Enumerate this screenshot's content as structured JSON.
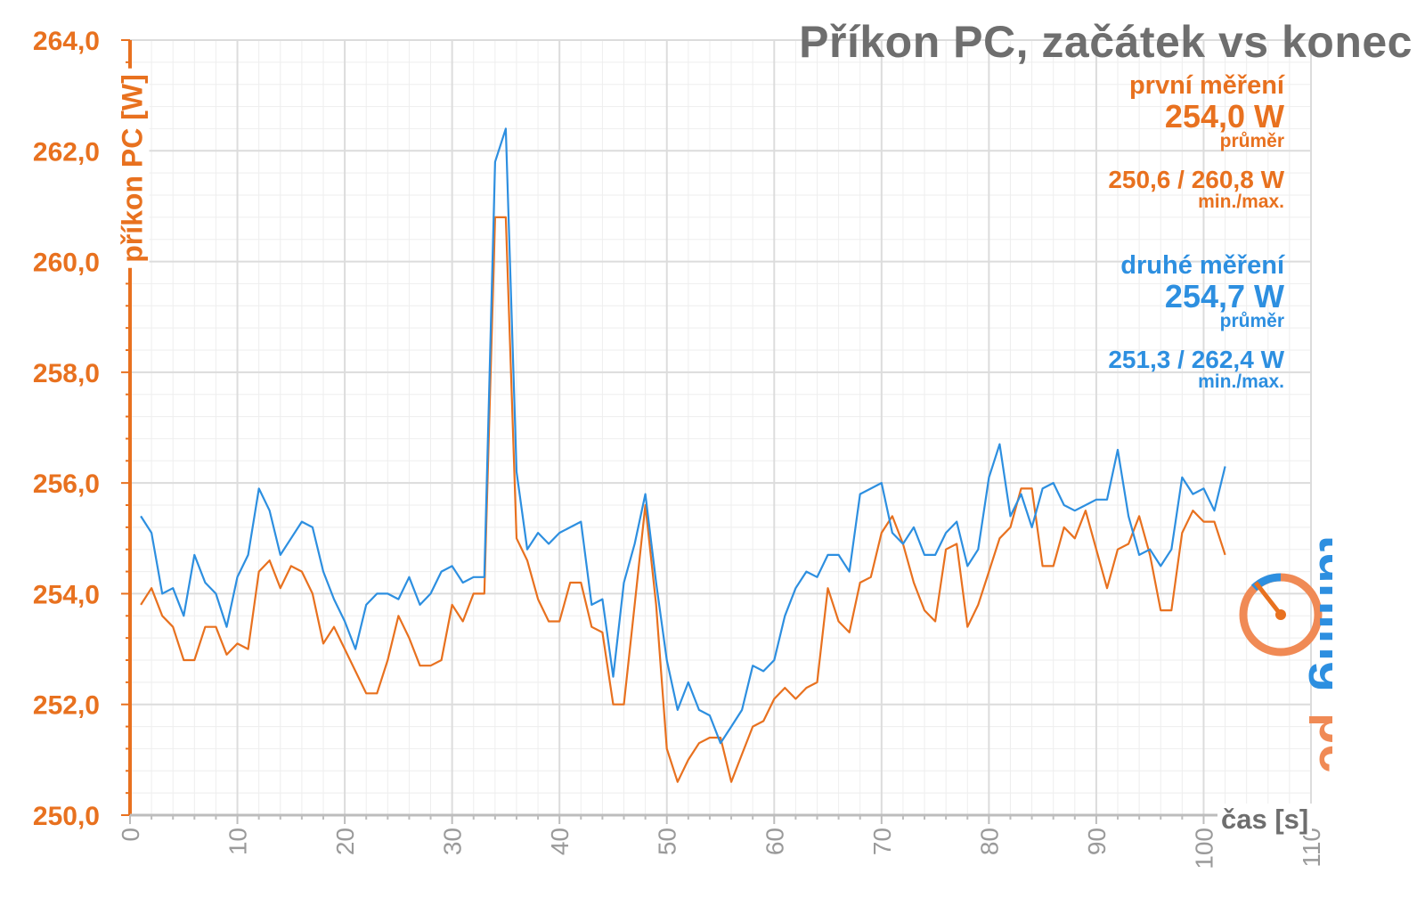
{
  "chart_data": {
    "type": "line",
    "title": "Příkon PC, začátek vs konec",
    "ylabel": "příkon PC [W]",
    "xlabel": "čas [s]",
    "xlim": [
      0,
      110
    ],
    "ylim": [
      250,
      264
    ],
    "x_ticks": [
      "0",
      "10",
      "20",
      "30",
      "40",
      "50",
      "60",
      "70",
      "80",
      "90",
      "100",
      "110"
    ],
    "y_ticks": [
      "250,0",
      "252,0",
      "254,0",
      "256,0",
      "258,0",
      "260,0",
      "262,0",
      "264,0"
    ],
    "grid": true,
    "series": [
      {
        "name": "první měření",
        "color": "#e8711f",
        "average": "254,0 W",
        "average_label": "průměr",
        "minmax": "250,6 / 260,8 W",
        "minmax_label": "min./max.",
        "x": [
          1,
          2,
          3,
          4,
          5,
          6,
          7,
          8,
          9,
          10,
          11,
          12,
          13,
          14,
          15,
          16,
          17,
          18,
          19,
          20,
          21,
          22,
          23,
          24,
          25,
          26,
          27,
          28,
          29,
          30,
          31,
          32,
          33,
          34,
          35,
          36,
          37,
          38,
          39,
          40,
          41,
          42,
          43,
          44,
          45,
          46,
          47,
          48,
          49,
          50,
          51,
          52,
          53,
          54,
          55,
          56,
          57,
          58,
          59,
          60,
          61,
          62,
          63,
          64,
          65,
          66,
          67,
          68,
          69,
          70,
          71,
          72,
          73,
          74,
          75,
          76,
          77,
          78,
          79,
          80,
          81,
          82,
          83,
          84,
          85,
          86,
          87,
          88,
          89,
          90,
          91,
          92,
          93,
          94,
          95,
          96,
          97,
          98,
          99,
          100,
          101,
          102
        ],
        "values": [
          253.8,
          254.1,
          253.6,
          253.4,
          252.8,
          252.8,
          253.4,
          253.4,
          252.9,
          253.1,
          253.0,
          254.4,
          254.6,
          254.1,
          254.5,
          254.4,
          254.0,
          253.1,
          253.4,
          253.0,
          252.6,
          252.2,
          252.2,
          252.8,
          253.6,
          253.2,
          252.7,
          252.7,
          252.8,
          253.8,
          253.5,
          254.0,
          254.0,
          260.8,
          260.8,
          255.0,
          254.6,
          253.9,
          253.5,
          253.5,
          254.2,
          254.2,
          253.4,
          253.3,
          252.0,
          252.0,
          253.8,
          255.6,
          253.8,
          251.2,
          250.6,
          251.0,
          251.3,
          251.4,
          251.4,
          250.6,
          251.1,
          251.6,
          251.7,
          252.1,
          252.3,
          252.1,
          252.3,
          252.4,
          254.1,
          253.5,
          253.3,
          254.2,
          254.3,
          255.1,
          255.4,
          254.9,
          254.2,
          253.7,
          253.5,
          254.8,
          254.9,
          253.4,
          253.8,
          254.4,
          255.0,
          255.2,
          255.9,
          255.9,
          254.5,
          254.5,
          255.2,
          255.0,
          255.5,
          254.8,
          254.1,
          254.8,
          254.9,
          255.4,
          254.7,
          253.7,
          253.7,
          255.1,
          255.5,
          255.3,
          255.3,
          254.7
        ]
      },
      {
        "name": "druhé měření",
        "color": "#2d8fe0",
        "average": "254,7 W",
        "average_label": "průměr",
        "minmax": "251,3 / 262,4 W",
        "minmax_label": "min./max.",
        "x": [
          1,
          2,
          3,
          4,
          5,
          6,
          7,
          8,
          9,
          10,
          11,
          12,
          13,
          14,
          15,
          16,
          17,
          18,
          19,
          20,
          21,
          22,
          23,
          24,
          25,
          26,
          27,
          28,
          29,
          30,
          31,
          32,
          33,
          34,
          35,
          36,
          37,
          38,
          39,
          40,
          41,
          42,
          43,
          44,
          45,
          46,
          47,
          48,
          49,
          50,
          51,
          52,
          53,
          54,
          55,
          56,
          57,
          58,
          59,
          60,
          61,
          62,
          63,
          64,
          65,
          66,
          67,
          68,
          69,
          70,
          71,
          72,
          73,
          74,
          75,
          76,
          77,
          78,
          79,
          80,
          81,
          82,
          83,
          84,
          85,
          86,
          87,
          88,
          89,
          90,
          91,
          92,
          93,
          94,
          95,
          96,
          97,
          98,
          99,
          100,
          101,
          102
        ],
        "values": [
          255.4,
          255.1,
          254.0,
          254.1,
          253.6,
          254.7,
          254.2,
          254.0,
          253.4,
          254.3,
          254.7,
          255.9,
          255.5,
          254.7,
          255.0,
          255.3,
          255.2,
          254.4,
          253.9,
          253.5,
          253.0,
          253.8,
          254.0,
          254.0,
          253.9,
          254.3,
          253.8,
          254.0,
          254.4,
          254.5,
          254.2,
          254.3,
          254.3,
          261.8,
          262.4,
          256.2,
          254.8,
          255.1,
          254.9,
          255.1,
          255.2,
          255.3,
          253.8,
          253.9,
          252.5,
          254.2,
          254.9,
          255.8,
          254.2,
          252.8,
          251.9,
          252.4,
          251.9,
          251.8,
          251.3,
          251.6,
          251.9,
          252.7,
          252.6,
          252.8,
          253.6,
          254.1,
          254.4,
          254.3,
          254.7,
          254.7,
          254.4,
          255.8,
          255.9,
          256.0,
          255.1,
          254.9,
          255.2,
          254.7,
          254.7,
          255.1,
          255.3,
          254.5,
          254.8,
          256.1,
          256.7,
          255.4,
          255.8,
          255.2,
          255.9,
          256.0,
          255.6,
          255.5,
          255.6,
          255.7,
          255.7,
          256.6,
          255.4,
          254.7,
          254.8,
          254.5,
          254.8,
          256.1,
          255.8,
          255.9,
          255.5,
          256.3
        ]
      }
    ]
  }
}
